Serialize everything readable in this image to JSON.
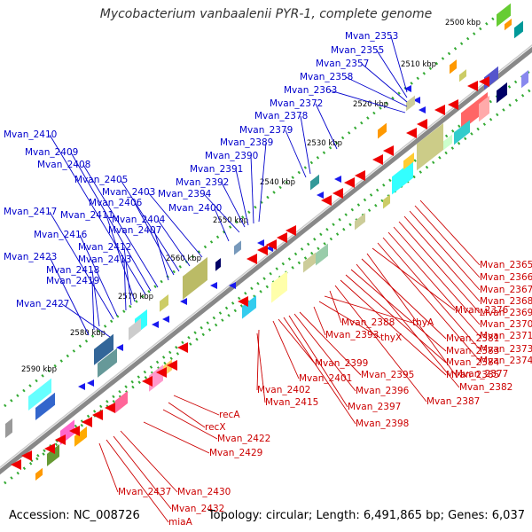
{
  "title": "Mycobacterium vanbaalenii PYR-1, complete genome",
  "footer": {
    "accession": "Accession: NC_008726",
    "summary": "Topology: circular; Length: 6,491,865 bp; Genes: 6,037"
  },
  "kbp_ticks": [
    "2500 kbp",
    "2510 kbp",
    "2520 kbp",
    "2530 kbp",
    "2540 kbp",
    "2550 kbp",
    "2560 kbp",
    "2570 kbp",
    "2580 kbp",
    "2590 kbp"
  ],
  "upper_genes": [
    "Mvan_2353",
    "Mvan_2355",
    "Mvan_2357",
    "Mvan_2358",
    "Mvan_2363",
    "Mvan_2372",
    "Mvan_2378",
    "Mvan_2379",
    "Mvan_2389",
    "Mvan_2390",
    "Mvan_2391",
    "Mvan_2392",
    "Mvan_2394",
    "Mvan_2400",
    "Mvan_2403",
    "Mvan_2404",
    "Mvan_2405",
    "Mvan_2406",
    "Mvan_2407",
    "Mvan_2408",
    "Mvan_2409",
    "Mvan_2410",
    "Mvan_2411",
    "Mvan_2412",
    "Mvan_2413",
    "Mvan_2416",
    "Mvan_2417",
    "Mvan_2418",
    "Mvan_2419",
    "Mvan_2423",
    "Mvan_2427"
  ],
  "lower_genes": [
    "Mvan_2365",
    "Mvan_2366",
    "Mvan_2367",
    "Mvan_2368",
    "Mvan_2369",
    "Mvan_2370",
    "Mvan_2371",
    "Mvan_2373",
    "Mvan_2374",
    "Mvan_2376",
    "Mvan_2377",
    "Mvan_2381",
    "Mvan_2382",
    "Mvan_2383",
    "Mvan_2384",
    "Mvan_2385",
    "Mvan_2387",
    "Mvan_2388",
    "thyA",
    "thyX",
    "Mvan_2393",
    "Mvan_2395",
    "Mvan_2396",
    "Mvan_2397",
    "Mvan_2398",
    "Mvan_2399",
    "Mvan_2401",
    "Mvan_2402",
    "Mvan_2415",
    "recA",
    "recX",
    "Mvan_2422",
    "Mvan_2429",
    "Mvan_2430",
    "Mvan_2432",
    "Mvan_2437",
    "miaA"
  ],
  "colors": {
    "upper_label": "#0000cc",
    "lower_label": "#cc0000",
    "backbone": "#888888",
    "tick": "#33aa33"
  }
}
